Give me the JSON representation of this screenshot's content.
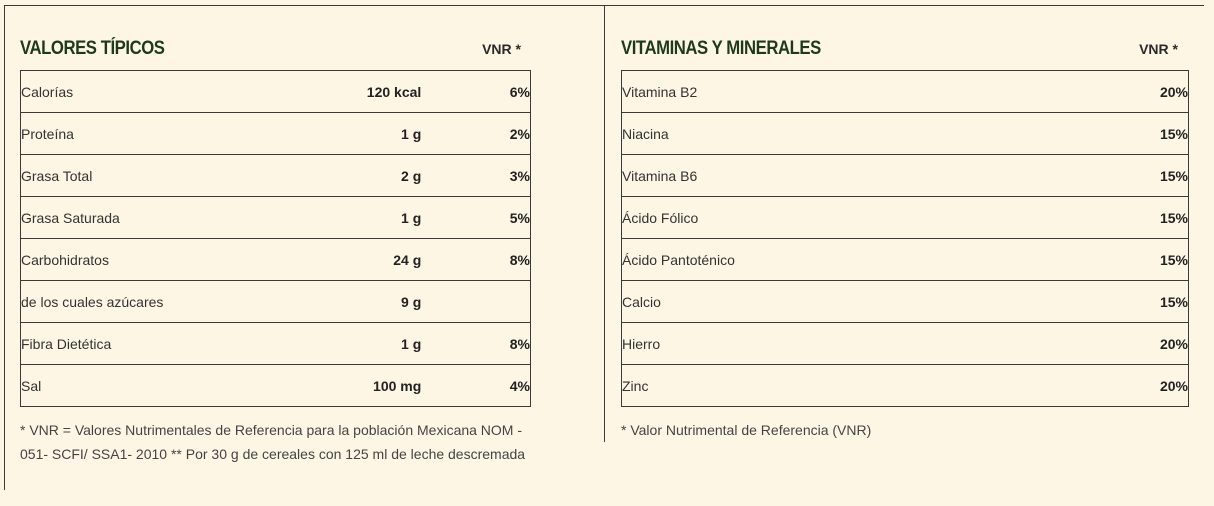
{
  "left": {
    "title": "VALORES TÍPICOS",
    "vnr_header": "VNR *",
    "rows": [
      {
        "name": "Calorías",
        "amount": "120 kcal",
        "vnr": "6%"
      },
      {
        "name": "Proteína",
        "amount": "1 g",
        "vnr": "2%"
      },
      {
        "name": "Grasa Total",
        "amount": "2 g",
        "vnr": "3%"
      },
      {
        "name": "Grasa Saturada",
        "amount": "1 g",
        "vnr": "5%"
      },
      {
        "name": "Carbohidratos",
        "amount": "24 g",
        "vnr": "8%"
      },
      {
        "name": "de los cuales azúcares",
        "amount": "9 g",
        "vnr": ""
      },
      {
        "name": "Fibra Dietética",
        "amount": "1 g",
        "vnr": "8%"
      },
      {
        "name": "Sal",
        "amount": "100 mg",
        "vnr": "4%"
      }
    ],
    "footnote": "* VNR = Valores Nutrimentales de Referencia para la población Mexicana NOM - 051- SCFI/ SSA1- 2010 ** Por 30 g de cereales con 125 ml de leche descremada"
  },
  "right": {
    "title": "VITAMINAS Y MINERALES",
    "vnr_header": "VNR *",
    "rows": [
      {
        "name": "Vitamina B2",
        "vnr": "20%"
      },
      {
        "name": "Niacina",
        "vnr": "15%"
      },
      {
        "name": "Vitamina B6",
        "vnr": "15%"
      },
      {
        "name": "Ácido Fólico",
        "vnr": "15%"
      },
      {
        "name": "Ácido Pantoténico",
        "vnr": "15%"
      },
      {
        "name": "Calcio",
        "vnr": "15%"
      },
      {
        "name": "Hierro",
        "vnr": "20%"
      },
      {
        "name": "Zinc",
        "vnr": "20%"
      }
    ],
    "footnote": "* Valor Nutrimental de Referencia (VNR)"
  }
}
